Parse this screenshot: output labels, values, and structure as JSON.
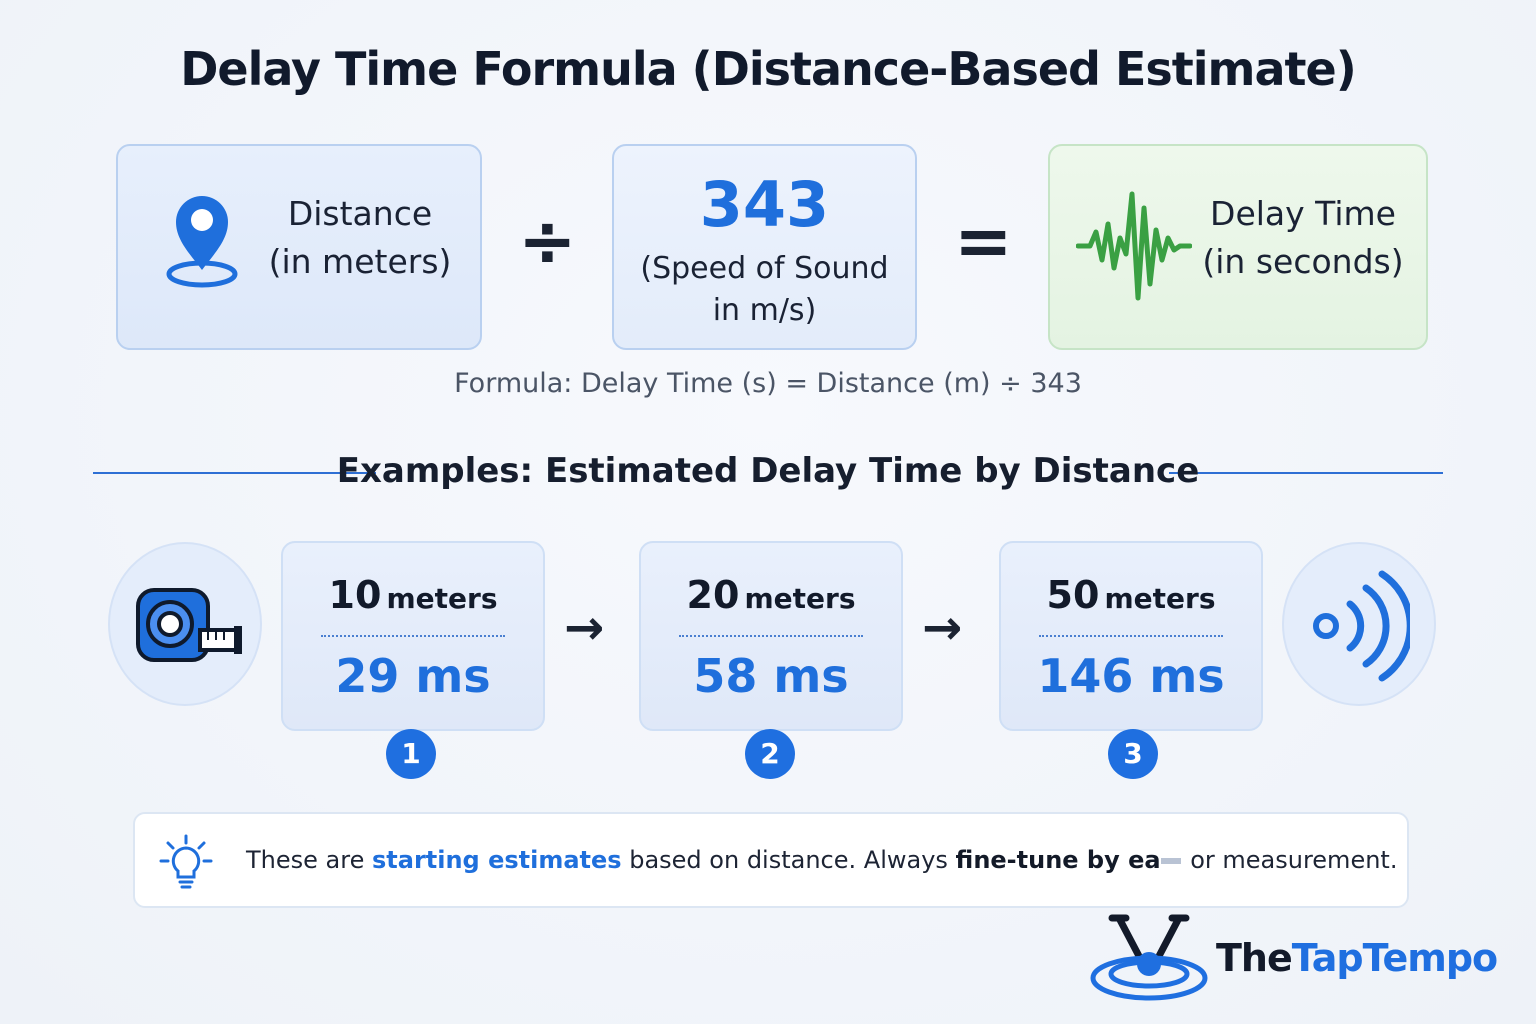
{
  "title": "Delay Time Formula (Distance-Based Estimate)",
  "formula": {
    "distance_label": "Distance",
    "distance_unit": "(in meters)",
    "divide_symbol": "÷",
    "speed_value": "343",
    "speed_label_line1": "(Speed of Sound",
    "speed_label_line2": "in m/s)",
    "equals_symbol": "=",
    "delay_label": "Delay Time",
    "delay_unit": "(in seconds)",
    "formula_text": "Formula: Delay Time (s) = Distance (m) ÷ 343"
  },
  "examples": {
    "heading": "Examples: Estimated Delay Time by Distance",
    "arrow": "→",
    "items": [
      {
        "distance": "10",
        "unit": "meters",
        "delay": "29 ms",
        "step": "1"
      },
      {
        "distance": "20",
        "unit": "meters",
        "delay": "58 ms",
        "step": "2"
      },
      {
        "distance": "50",
        "unit": "meters",
        "delay": "146 ms",
        "step": "3"
      }
    ]
  },
  "tip": {
    "part1": "These are ",
    "highlight1": "starting estimates",
    "part2": " based on distance. Always ",
    "highlight2": "fine-tune by ea",
    "part3": " or measurement."
  },
  "logo": {
    "part1": "The",
    "part2": "TapTempo"
  },
  "icons": {
    "location": "location-pin-icon",
    "waveform": "waveform-icon",
    "tape_measure": "tape-measure-icon",
    "sound_waves": "sound-waves-icon",
    "lightbulb": "lightbulb-icon",
    "logo_mark": "tuning-fork-logo-icon"
  },
  "colors": {
    "accent_blue": "#1f6fdc",
    "wave_green": "#3aa043",
    "text_dark": "#141c2e"
  }
}
